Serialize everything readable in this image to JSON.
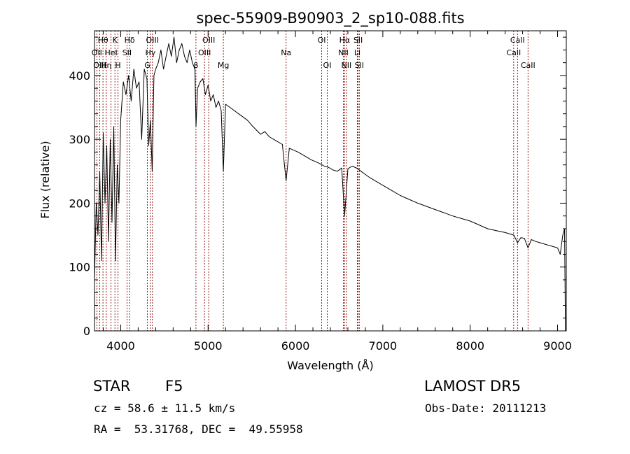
{
  "chart_data": {
    "type": "line",
    "title": "spec-55909-B90903_2_sp10-088.fits",
    "xlabel": "Wavelength (Å)",
    "ylabel": "Flux (relative)",
    "xlim": [
      3700,
      9100
    ],
    "ylim": [
      0,
      470
    ],
    "xticks": [
      4000,
      5000,
      6000,
      7000,
      8000,
      9000
    ],
    "yticks": [
      0,
      100,
      200,
      300,
      400
    ],
    "grid": false,
    "line_color": "#000000",
    "marker_color": "#8b0000",
    "spectral_lines": [
      {
        "label": "Hθ",
        "wavelength": 3797,
        "row": 0
      },
      {
        "label": "K",
        "wavelength": 3934,
        "row": 0
      },
      {
        "label": "Hδ",
        "wavelength": 4102,
        "row": 0
      },
      {
        "label": "OIII",
        "wavelength": 4363,
        "row": 0
      },
      {
        "label": "OIII",
        "wavelength": 5007,
        "row": 0
      },
      {
        "label": "OI",
        "wavelength": 6300,
        "row": 0
      },
      {
        "label": "Hα",
        "wavelength": 6563,
        "row": 0
      },
      {
        "label": "SII",
        "wavelength": 6717,
        "row": 0
      },
      {
        "label": "CaII",
        "wavelength": 8542,
        "row": 0
      },
      {
        "label": "OII",
        "wavelength": 3727,
        "row": 1
      },
      {
        "label": "HeI",
        "wavelength": 3889,
        "row": 1
      },
      {
        "label": "SII",
        "wavelength": 4072,
        "row": 1
      },
      {
        "label": "Hγ",
        "wavelength": 4340,
        "row": 1
      },
      {
        "label": "OIII",
        "wavelength": 4959,
        "row": 1
      },
      {
        "label": "Na",
        "wavelength": 5893,
        "row": 1
      },
      {
        "label": "NII",
        "wavelength": 6548,
        "row": 1
      },
      {
        "label": "Li",
        "wavelength": 6708,
        "row": 1
      },
      {
        "label": "CaII",
        "wavelength": 8498,
        "row": 1
      },
      {
        "label": "OIII",
        "wavelength": 3760,
        "row": 2
      },
      {
        "label": "Hη",
        "wavelength": 3835,
        "row": 2
      },
      {
        "label": "H",
        "wavelength": 3969,
        "row": 2
      },
      {
        "label": "G",
        "wavelength": 4305,
        "row": 2
      },
      {
        "label": "β",
        "wavelength": 4861,
        "row": 2
      },
      {
        "label": "Mg",
        "wavelength": 5175,
        "row": 2
      },
      {
        "label": "OI",
        "wavelength": 6364,
        "row": 2
      },
      {
        "label": "NII",
        "wavelength": 6583,
        "row": 2
      },
      {
        "label": "SII",
        "wavelength": 6731,
        "row": 2
      },
      {
        "label": "CaII",
        "wavelength": 8662,
        "row": 2
      }
    ],
    "series": [
      {
        "x": [
          3700,
          3720,
          3740,
          3760,
          3780,
          3800,
          3820,
          3840,
          3860,
          3880,
          3900,
          3920,
          3940,
          3960,
          3980,
          4000,
          4030,
          4060,
          4090,
          4120,
          4150,
          4180,
          4210,
          4240,
          4270,
          4300,
          4320,
          4340,
          4360,
          4380,
          4400,
          4430,
          4460,
          4490,
          4520,
          4550,
          4580,
          4610,
          4640,
          4670,
          4700,
          4730,
          4760,
          4790,
          4820,
          4850,
          4862,
          4880,
          4910,
          4940,
          4970,
          5000,
          5030,
          5060,
          5090,
          5120,
          5150,
          5175,
          5200,
          5250,
          5300,
          5350,
          5400,
          5450,
          5500,
          5550,
          5600,
          5650,
          5700,
          5750,
          5800,
          5850,
          5893,
          5930,
          5980,
          6030,
          6080,
          6130,
          6180,
          6230,
          6280,
          6330,
          6380,
          6430,
          6480,
          6530,
          6563,
          6600,
          6650,
          6700,
          6750,
          6800,
          6850,
          6900,
          6950,
          7000,
          7100,
          7200,
          7300,
          7400,
          7500,
          7600,
          7700,
          7800,
          7900,
          8000,
          8100,
          8200,
          8300,
          8400,
          8500,
          8542,
          8580,
          8620,
          8662,
          8700,
          8750,
          8800,
          8850,
          8900,
          8950,
          9000,
          9030,
          9060,
          9080,
          9090
        ],
        "y": [
          80,
          200,
          150,
          250,
          110,
          310,
          200,
          290,
          140,
          300,
          170,
          320,
          110,
          260,
          200,
          330,
          390,
          370,
          400,
          360,
          410,
          380,
          390,
          300,
          410,
          395,
          290,
          330,
          250,
          400,
          410,
          420,
          440,
          410,
          430,
          450,
          430,
          460,
          420,
          440,
          450,
          430,
          420,
          440,
          420,
          410,
          320,
          380,
          390,
          395,
          370,
          385,
          360,
          370,
          350,
          360,
          345,
          250,
          355,
          350,
          345,
          340,
          335,
          330,
          322,
          315,
          308,
          312,
          304,
          300,
          296,
          292,
          235,
          286,
          283,
          280,
          276,
          272,
          268,
          265,
          262,
          258,
          256,
          252,
          250,
          255,
          180,
          254,
          258,
          255,
          250,
          245,
          240,
          236,
          232,
          228,
          220,
          212,
          206,
          200,
          195,
          190,
          185,
          180,
          176,
          172,
          166,
          160,
          157,
          154,
          150,
          138,
          146,
          145,
          130,
          143,
          140,
          138,
          136,
          134,
          132,
          130,
          120,
          150,
          160,
          0
        ]
      }
    ]
  },
  "info": {
    "object_class": "STAR",
    "subclass": "F5",
    "survey": "LAMOST DR5",
    "redshift": "cz = 58.6 ± 11.5 km/s",
    "obs_date": "Obs-Date: 20111213",
    "coords": "RA =  53.31768, DEC =  49.55958"
  }
}
